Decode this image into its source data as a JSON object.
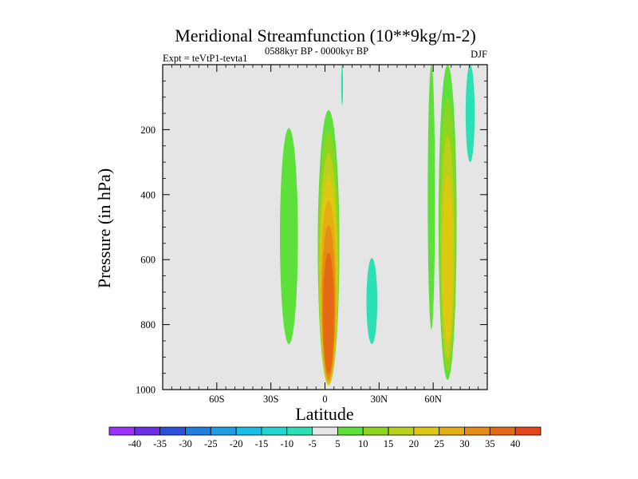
{
  "chart_data": {
    "type": "contour",
    "title": "Meridional Streamfunction (10**9kg/m-2)",
    "subtitle_left": "Expt = teVtP1-tevta1",
    "subtitle_center": "0588kyr BP - 0000kyr BP",
    "subtitle_right": "DJF",
    "xlabel": "Latitude",
    "ylabel": "Pressure (in hPa)",
    "xlim": [
      -90,
      90
    ],
    "ylim": [
      1000,
      0
    ],
    "x_ticks": [
      {
        "value": -60,
        "label": "60S"
      },
      {
        "value": -30,
        "label": "30S"
      },
      {
        "value": 0,
        "label": "0"
      },
      {
        "value": 30,
        "label": "30N"
      },
      {
        "value": 60,
        "label": "60N"
      }
    ],
    "y_ticks": [
      {
        "value": 200,
        "label": "200"
      },
      {
        "value": 400,
        "label": "400"
      },
      {
        "value": 600,
        "label": "600"
      },
      {
        "value": 800,
        "label": "800"
      },
      {
        "value": 1000,
        "label": "1000"
      }
    ],
    "background_color": "#e5e5e5",
    "colorbar": {
      "levels": [
        -40,
        -35,
        -30,
        -25,
        -20,
        -15,
        -10,
        -5,
        5,
        10,
        15,
        20,
        25,
        30,
        35,
        40
      ],
      "labels": [
        "-40",
        "-35",
        "-30",
        "-25",
        "-20",
        "-15",
        "-10",
        "-5",
        "5",
        "10",
        "15",
        "20",
        "25",
        "30",
        "35",
        "40"
      ],
      "colors": [
        "#9b30ff",
        "#6a2fe6",
        "#2c4fdc",
        "#1f7fe0",
        "#1e9fe6",
        "#17bfe6",
        "#1fd7d0",
        "#2ae0b4",
        "#e5e5e5",
        "#5ee03a",
        "#8fd41e",
        "#b9d11a",
        "#dfc812",
        "#e6ad12",
        "#e68b14",
        "#e66a14",
        "#e6461a"
      ]
    },
    "features": [
      {
        "name": "equatorial-cell",
        "sign": "positive",
        "lat_range": [
          -4,
          8
        ],
        "p_range": [
          140,
          985
        ],
        "max_value": 40
      },
      {
        "name": "southern-cell",
        "sign": "positive",
        "lat_range": [
          -25,
          -15
        ],
        "p_range": [
          195,
          860
        ],
        "max_value": 10
      },
      {
        "name": "northern-cell",
        "sign": "positive",
        "lat_range": [
          63,
          73
        ],
        "p_range": [
          0,
          970
        ],
        "max_value": 25
      },
      {
        "name": "northern-strip",
        "sign": "positive",
        "lat_range": [
          57,
          61
        ],
        "p_range": [
          0,
          815
        ],
        "max_value": 10
      },
      {
        "name": "tropical-negative",
        "sign": "negative",
        "lat_range": [
          23,
          29
        ],
        "p_range": [
          595,
          860
        ],
        "min_value": -10
      },
      {
        "name": "upper-negative-0",
        "sign": "negative",
        "lat_range": [
          9,
          10
        ],
        "p_range": [
          0,
          125
        ],
        "min_value": -10
      },
      {
        "name": "upper-negative-80",
        "sign": "negative",
        "lat_range": [
          78,
          83
        ],
        "p_range": [
          0,
          300
        ],
        "min_value": -10
      }
    ]
  }
}
